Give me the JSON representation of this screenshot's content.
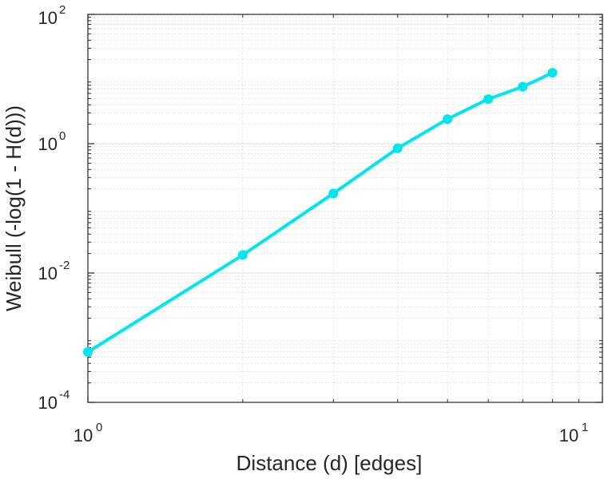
{
  "chart_data": {
    "type": "line",
    "title": "",
    "xlabel": "Distance (d) [edges]",
    "ylabel": "Weibull (-log(1 - H(d)))",
    "x_scale": "log",
    "y_scale": "log",
    "xlim": [
      1,
      10
    ],
    "ylim": [
      0.0001,
      100
    ],
    "grid": true,
    "minor_grid": true,
    "x_ticks": [
      {
        "base": "10",
        "exp": "0",
        "value": 1
      },
      {
        "base": "10",
        "exp": "1",
        "value": 10
      }
    ],
    "y_ticks": [
      {
        "base": "10",
        "exp": "-4",
        "value": 0.0001
      },
      {
        "base": "10",
        "exp": "-2",
        "value": 0.01
      },
      {
        "base": "10",
        "exp": "0",
        "value": 1
      },
      {
        "base": "10",
        "exp": "2",
        "value": 100
      }
    ],
    "series": [
      {
        "color": "#00e5ee",
        "marker": "circle",
        "x": [
          1,
          2,
          3,
          4,
          5,
          6,
          7,
          8
        ],
        "y": [
          0.0006,
          0.019,
          0.17,
          0.85,
          2.4,
          4.9,
          7.6,
          12.5
        ]
      }
    ]
  }
}
